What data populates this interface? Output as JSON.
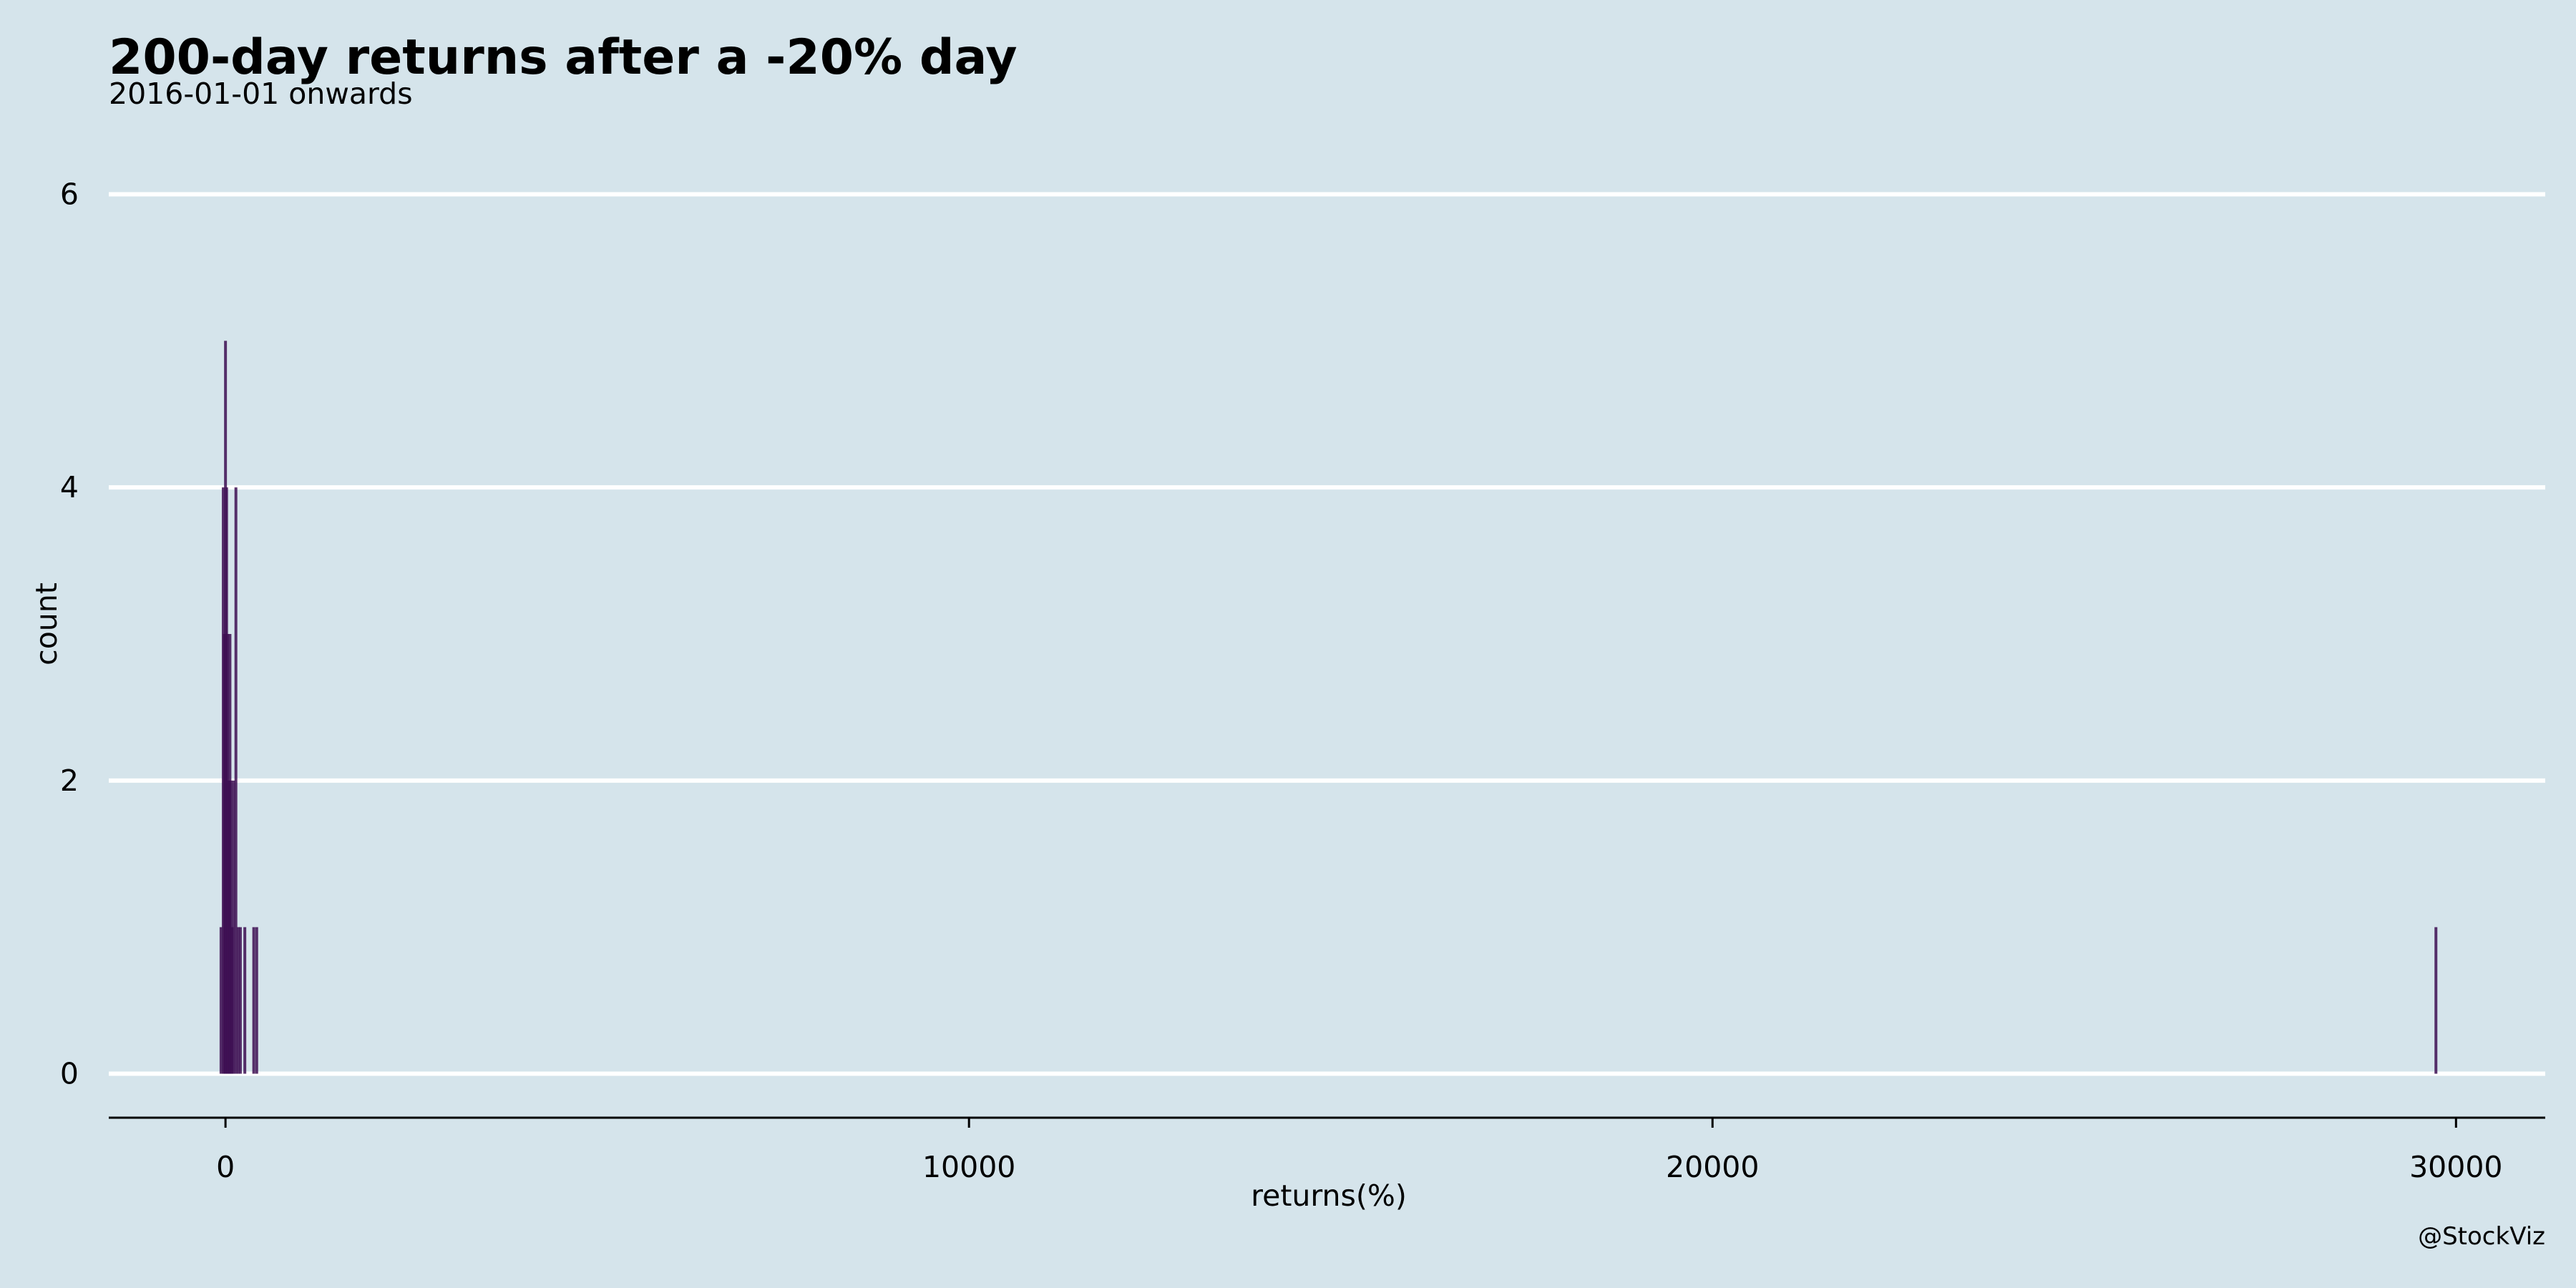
{
  "chart_data": {
    "type": "bar",
    "title": "200-day returns after a -20% day",
    "subtitle": "2016-01-01 onwards",
    "xlabel": "returns(%)",
    "ylabel": "count",
    "caption": "@StockViz",
    "xlim": [
      -1570,
      31200
    ],
    "ylim": [
      -0.3,
      6.3
    ],
    "x_ticks": [
      0,
      10000,
      20000,
      30000
    ],
    "y_ticks": [
      0,
      2,
      4,
      6
    ],
    "grid": "horizontal",
    "bar_color": "#3d0e52",
    "bins": [
      {
        "x": -60,
        "count": 1
      },
      {
        "x": -30,
        "count": 4
      },
      {
        "x": -15,
        "count": 3
      },
      {
        "x": 0,
        "count": 5
      },
      {
        "x": 15,
        "count": 4
      },
      {
        "x": 30,
        "count": 3
      },
      {
        "x": 45,
        "count": 2
      },
      {
        "x": 60,
        "count": 3
      },
      {
        "x": 75,
        "count": 2
      },
      {
        "x": 90,
        "count": 1
      },
      {
        "x": 110,
        "count": 2
      },
      {
        "x": 140,
        "count": 4
      },
      {
        "x": 170,
        "count": 1
      },
      {
        "x": 200,
        "count": 1
      },
      {
        "x": 260,
        "count": 1
      },
      {
        "x": 380,
        "count": 1
      },
      {
        "x": 420,
        "count": 1
      },
      {
        "x": 29730,
        "count": 1
      }
    ]
  }
}
